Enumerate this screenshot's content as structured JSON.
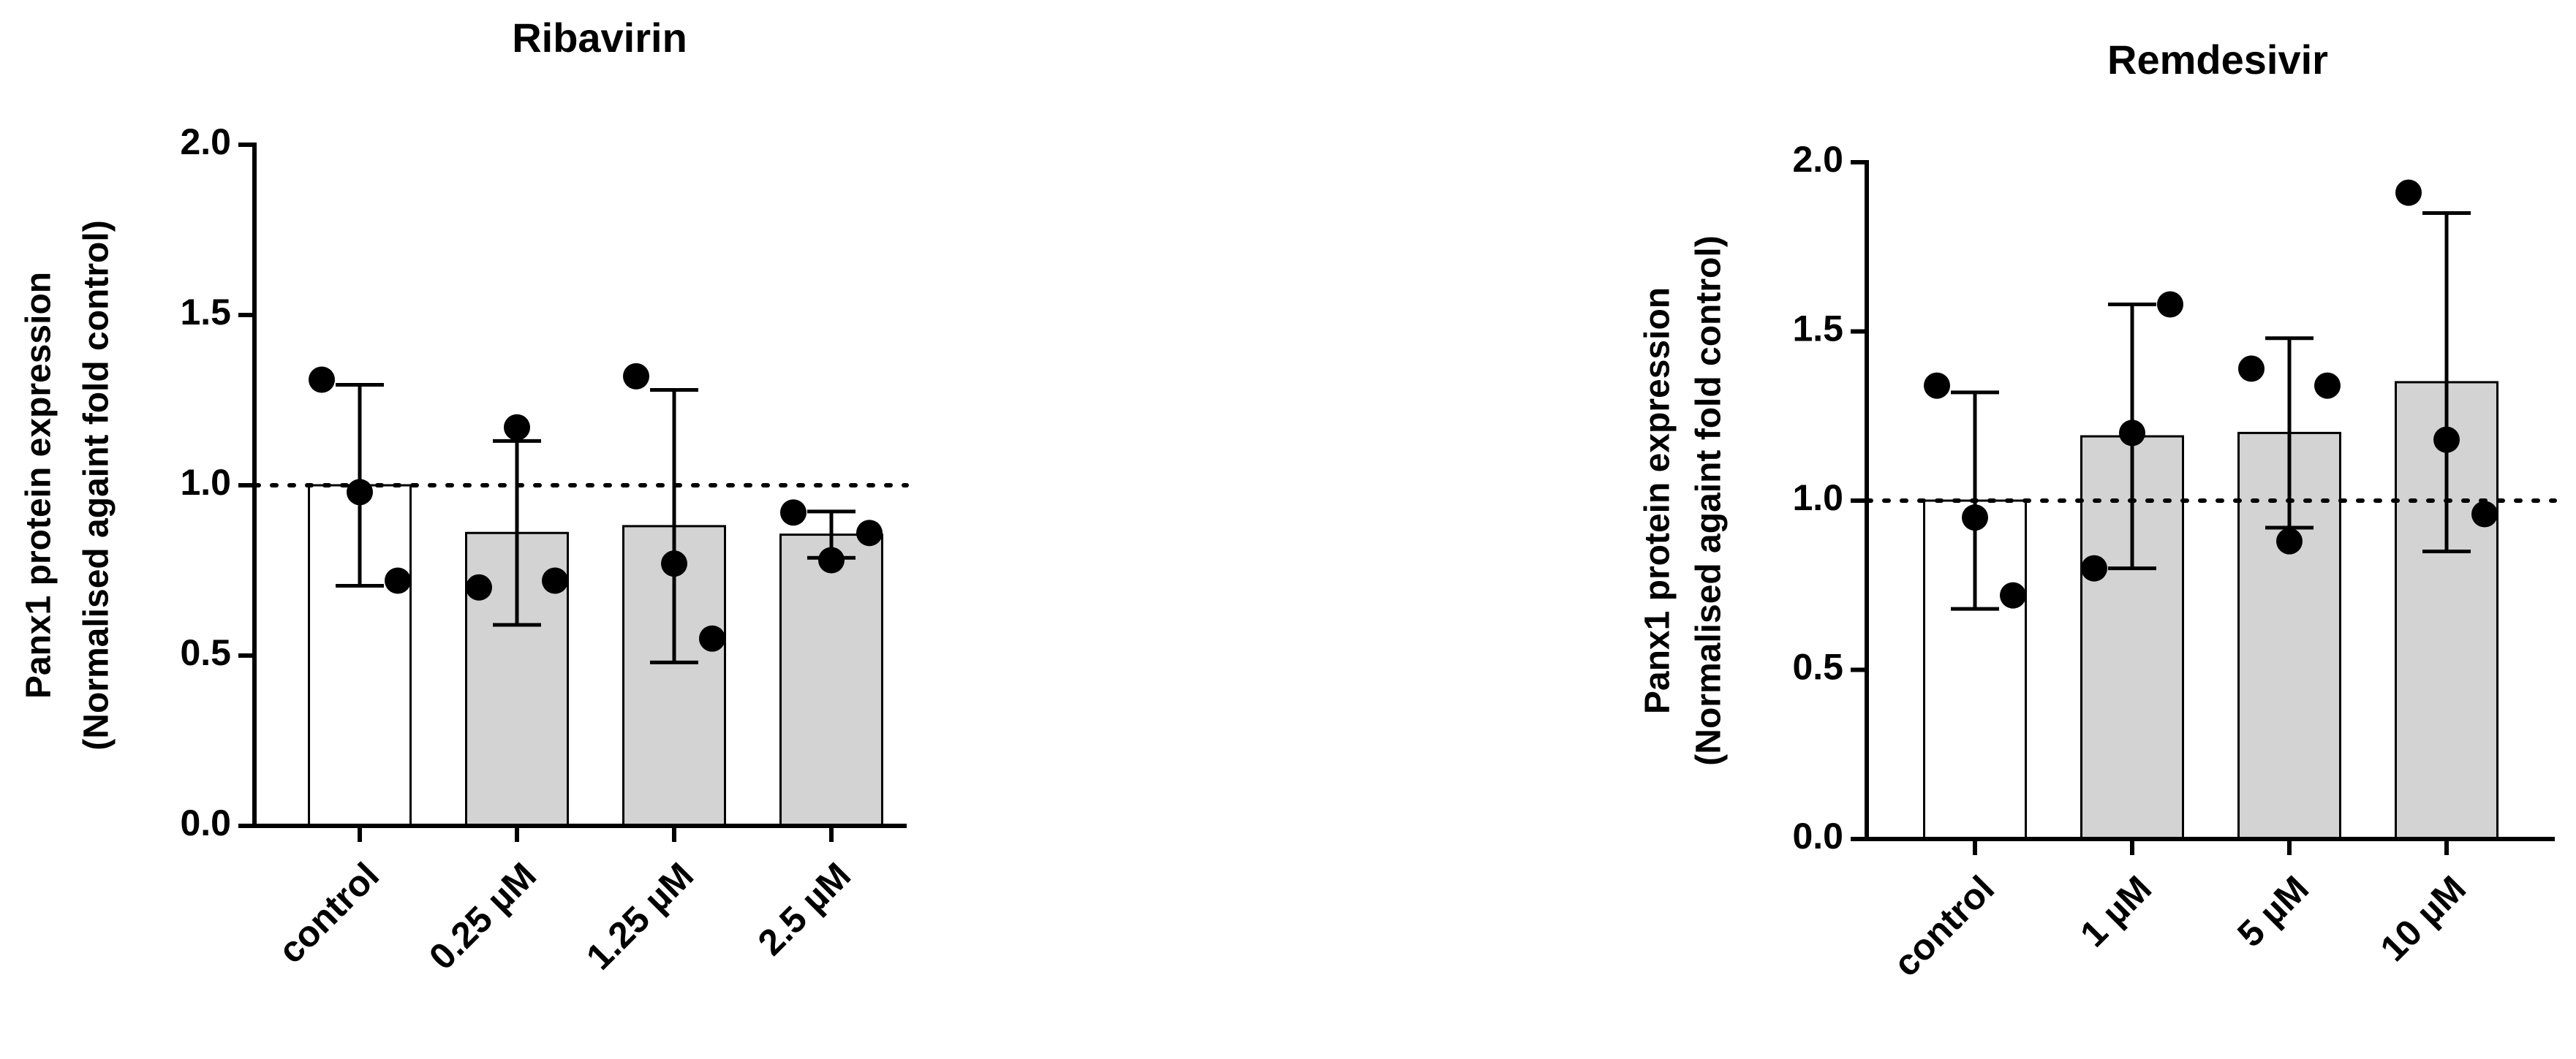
{
  "chart_data": [
    {
      "type": "bar",
      "title": "Ribavirin",
      "ylabel": [
        "Panx1 protein expression",
        "(Normalised againt fold control)"
      ],
      "categories": [
        "control",
        "0.25 µM",
        "1.25 µM",
        "2.5 µM"
      ],
      "values": [
        1.0,
        0.86,
        0.88,
        0.855
      ],
      "errors": [
        0.295,
        0.27,
        0.4,
        0.068
      ],
      "points": [
        [
          1.31,
          0.98,
          0.72
        ],
        [
          0.7,
          1.17,
          0.72
        ],
        [
          1.32,
          0.77,
          0.55
        ],
        [
          0.92,
          0.78,
          0.86
        ]
      ],
      "colors": [
        "#ffffff",
        "#d3d3d3",
        "#d3d3d3",
        "#d3d3d3"
      ],
      "reference_line": 1.0,
      "ylim": [
        0,
        2
      ],
      "yticks": [
        {
          "value": 0,
          "label": "0.0"
        },
        {
          "value": 0.5,
          "label": "0.5"
        },
        {
          "value": 1,
          "label": "1.0"
        },
        {
          "value": 1.5,
          "label": "1.5"
        },
        {
          "value": 2,
          "label": "2.0"
        }
      ]
    },
    {
      "type": "bar",
      "title": "Remdesivir",
      "ylabel": [
        "Panx1 protein expression",
        "(Normalised againt fold control)"
      ],
      "categories": [
        "control",
        "1 µM",
        "5 µM",
        "10 µM"
      ],
      "values": [
        1.0,
        1.19,
        1.2,
        1.35
      ],
      "errors": [
        0.32,
        0.39,
        0.28,
        0.5
      ],
      "points": [
        [
          1.34,
          0.95,
          0.72
        ],
        [
          0.8,
          1.2,
          1.58
        ],
        [
          1.39,
          0.88,
          1.34
        ],
        [
          1.91,
          1.18,
          0.96
        ]
      ],
      "colors": [
        "#ffffff",
        "#d3d3d3",
        "#d3d3d3",
        "#d3d3d3"
      ],
      "reference_line": 1.0,
      "ylim": [
        0,
        2
      ],
      "yticks": [
        {
          "value": 0,
          "label": "0.0"
        },
        {
          "value": 0.5,
          "label": "0.5"
        },
        {
          "value": 1,
          "label": "1.0"
        },
        {
          "value": 1.5,
          "label": "1.5"
        },
        {
          "value": 2,
          "label": "2.0"
        }
      ]
    }
  ]
}
